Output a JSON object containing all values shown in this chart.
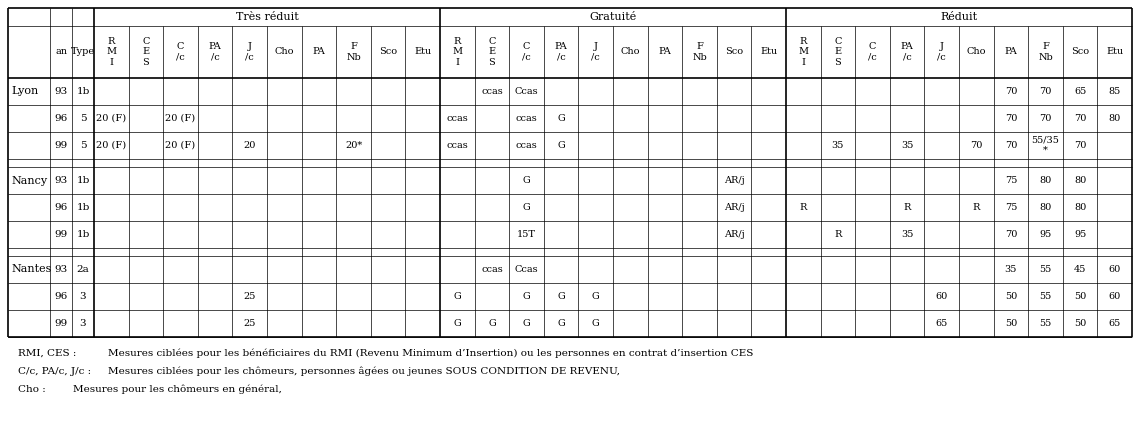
{
  "footnotes": [
    [
      "RMI, CES :",
      "Mesures ciblées pour les bénéficiaires du RMI (Revenu Minimum d’Insertion) ou les personnes en contrat d’insertion CES"
    ],
    [
      "C/c, PA/c, J/c :",
      "Mesures ciblées pour les chômeurs, personnes âgées ou jeunes SOUS CONDITION DE REVENU,"
    ],
    [
      "Cho :",
      "Mesures pour les chômeurs en général,"
    ]
  ],
  "row_data": [
    [
      "Lyon",
      "93",
      "1b",
      "",
      "",
      "",
      "",
      "",
      "",
      "",
      "",
      "",
      "",
      "",
      "ccas",
      "Ccas",
      "",
      "",
      "",
      "",
      "",
      "",
      "",
      "",
      "",
      "",
      "",
      "",
      "",
      "70",
      "70",
      "65",
      "85"
    ],
    [
      "",
      "96",
      "5",
      "20 (F)",
      "",
      "20 (F)",
      "",
      "",
      "",
      "",
      "",
      "",
      "",
      "ccas",
      "",
      "ccas",
      "G",
      "",
      "",
      "",
      "",
      "",
      "",
      "",
      "",
      "",
      "",
      "",
      "",
      "70",
      "70",
      "70",
      "80"
    ],
    [
      "",
      "99",
      "5",
      "20 (F)",
      "",
      "20 (F)",
      "",
      "20",
      "",
      "",
      "20*",
      "",
      "",
      "ccas",
      "",
      "ccas",
      "G",
      "",
      "",
      "",
      "",
      "",
      "",
      "",
      "35",
      "",
      "35",
      "",
      "70",
      "70",
      "55/35\n*",
      "70"
    ],
    [
      "Nancy",
      "93",
      "1b",
      "",
      "",
      "",
      "",
      "",
      "",
      "",
      "",
      "",
      "",
      "",
      "",
      "G",
      "",
      "",
      "",
      "",
      "",
      "AR/j",
      "",
      "",
      "",
      "",
      "",
      "",
      "",
      "75",
      "80",
      "80",
      ""
    ],
    [
      "",
      "96",
      "1b",
      "",
      "",
      "",
      "",
      "",
      "",
      "",
      "",
      "",
      "",
      "",
      "",
      "G",
      "",
      "",
      "",
      "",
      "",
      "AR/j",
      "",
      "R",
      "",
      "",
      "R",
      "",
      "R",
      "75",
      "80",
      "80",
      ""
    ],
    [
      "",
      "99",
      "1b",
      "",
      "",
      "",
      "",
      "",
      "",
      "",
      "",
      "",
      "",
      "",
      "",
      "15T",
      "",
      "",
      "",
      "",
      "",
      "AR/j",
      "",
      "",
      "R",
      "",
      "35",
      "",
      "",
      "70",
      "95",
      "95",
      ""
    ],
    [
      "Nantes",
      "93",
      "2a",
      "",
      "",
      "",
      "",
      "",
      "",
      "",
      "",
      "",
      "",
      "",
      "ccas",
      "Ccas",
      "",
      "",
      "",
      "",
      "",
      "",
      "",
      "",
      "",
      "",
      "",
      "",
      "",
      "35",
      "55",
      "45",
      "60"
    ],
    [
      "",
      "96",
      "3",
      "",
      "",
      "",
      "",
      "25",
      "",
      "",
      "",
      "",
      "",
      "G",
      "",
      "G",
      "G",
      "G",
      "",
      "",
      "",
      "",
      "",
      "",
      "",
      "",
      "",
      "60",
      "",
      "50",
      "55",
      "50",
      "60"
    ],
    [
      "",
      "99",
      "3",
      "",
      "",
      "",
      "",
      "25",
      "",
      "",
      "",
      "",
      "",
      "G",
      "G",
      "G",
      "G",
      "G",
      "",
      "",
      "",
      "",
      "",
      "",
      "",
      "",
      "",
      "65",
      "",
      "50",
      "55",
      "50",
      "65"
    ]
  ]
}
